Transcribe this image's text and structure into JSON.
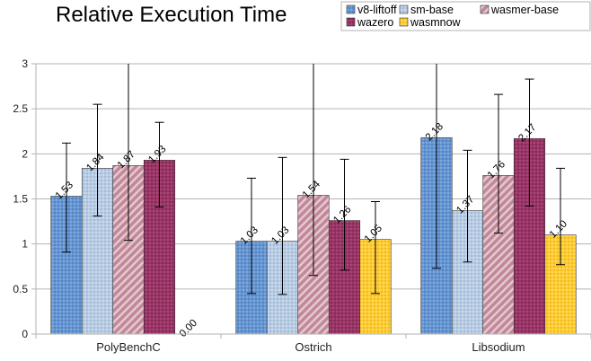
{
  "chart_data": {
    "type": "bar",
    "title": "Relative Execution Time",
    "categories": [
      "PolyBenchC",
      "Ostrich",
      "Libsodium"
    ],
    "ylim": [
      0,
      3
    ],
    "yticks": [
      "0",
      "0.5",
      "1",
      "1.5",
      "2",
      "2.5",
      "3"
    ],
    "ytick_values": [
      0,
      0.5,
      1,
      1.5,
      2,
      2.5,
      3
    ],
    "grid": "horizontal",
    "legend_position": "top-right",
    "series": [
      {
        "name": "v8-liftoff",
        "color": "#6495d2",
        "pattern": "dots",
        "values": [
          1.53,
          1.03,
          2.18
        ],
        "labels": [
          "1.53",
          "1.03",
          "2.18"
        ],
        "err_low": [
          0.91,
          0.45,
          0.73
        ],
        "err_high": [
          2.12,
          1.73,
          3.0
        ]
      },
      {
        "name": "sm-base",
        "color": "#b8cce4",
        "pattern": "dots",
        "values": [
          1.84,
          1.03,
          1.37
        ],
        "labels": [
          "1.84",
          "1.03",
          "1.37"
        ],
        "err_low": [
          1.31,
          0.44,
          0.8
        ],
        "err_high": [
          2.55,
          1.96,
          2.04
        ]
      },
      {
        "name": "wasmer-base",
        "color": "#c08898",
        "pattern": "hatch",
        "values": [
          1.87,
          1.54,
          1.76
        ],
        "labels": [
          "1.87",
          "1.54",
          "1.76"
        ],
        "err_low": [
          1.04,
          0.65,
          1.12
        ],
        "err_high": [
          3.0,
          3.0,
          2.66
        ]
      },
      {
        "name": "wazero",
        "color": "#993366",
        "pattern": "dots",
        "values": [
          1.93,
          1.26,
          2.17
        ],
        "labels": [
          "1.93",
          "1.26",
          "2.17"
        ],
        "err_low": [
          1.41,
          0.71,
          1.42
        ],
        "err_high": [
          2.35,
          1.94,
          2.83
        ]
      },
      {
        "name": "wasmnow",
        "color": "#ffcc33",
        "pattern": "dots",
        "values": [
          0.0,
          1.05,
          1.1
        ],
        "labels": [
          "0.00",
          "1.05",
          "1.10"
        ],
        "err_low": [
          null,
          0.45,
          0.77
        ],
        "err_high": [
          null,
          1.47,
          1.84
        ]
      }
    ]
  }
}
